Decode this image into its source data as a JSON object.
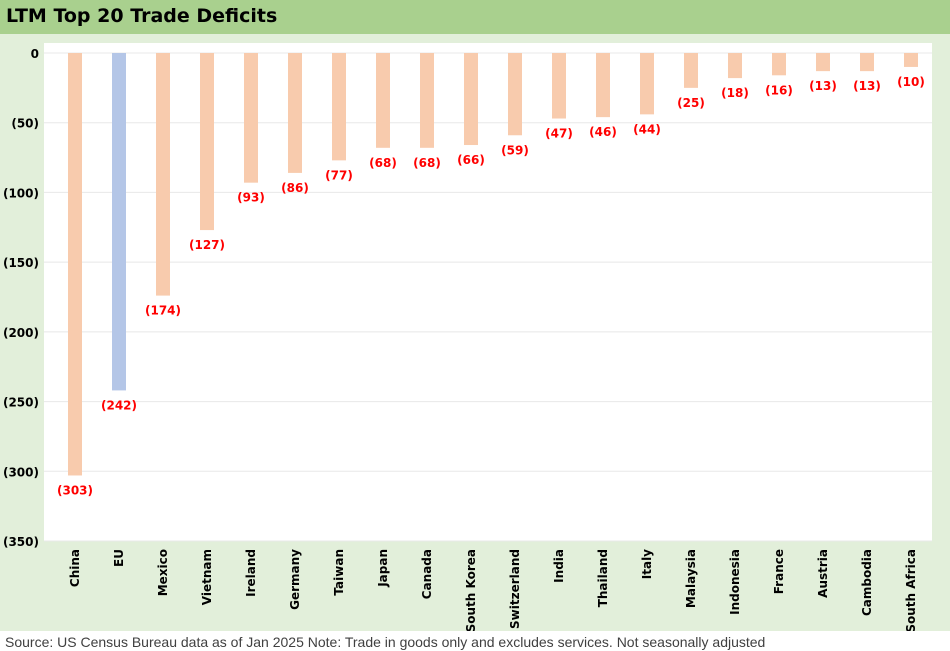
{
  "title": "LTM Top 20 Trade Deficits",
  "source_note": "Source: US Census Bureau data as of Jan 2025 Note: Trade in goods only and excludes services. Not seasonally adjusted",
  "colors": {
    "title_bar": "#a9d08e",
    "chart_background": "#e2efda",
    "bar_default": "#f8cbad",
    "bar_highlight": "#b4c6e7",
    "data_label": "#ff0000"
  },
  "chart_data": {
    "type": "bar",
    "title": "LTM Top 20 Trade Deficits",
    "categories": [
      "China",
      "EU",
      "Mexico",
      "Vietnam",
      "Ireland",
      "Germany",
      "Taiwan",
      "Japan",
      "Canada",
      "South Korea",
      "Switzerland",
      "India",
      "Thailand",
      "Italy",
      "Malaysia",
      "Indonesia",
      "France",
      "Austria",
      "Cambodia",
      "South Africa"
    ],
    "values": [
      -303,
      -242,
      -174,
      -127,
      -93,
      -86,
      -77,
      -68,
      -68,
      -66,
      -59,
      -47,
      -46,
      -44,
      -25,
      -18,
      -16,
      -13,
      -13,
      -10
    ],
    "data_labels": [
      "(303)",
      "(242)",
      "(174)",
      "(127)",
      "(93)",
      "(86)",
      "(77)",
      "(68)",
      "(68)",
      "(66)",
      "(59)",
      "(47)",
      "(46)",
      "(44)",
      "(25)",
      "(18)",
      "(16)",
      "(13)",
      "(13)",
      "(10)"
    ],
    "highlighted_category": "EU",
    "ylim": [
      -350,
      0
    ],
    "y_ticks": [
      0,
      -50,
      -100,
      -150,
      -200,
      -250,
      -300,
      -350
    ],
    "y_tick_labels": [
      "0",
      "(50)",
      "(100)",
      "(150)",
      "(200)",
      "(250)",
      "(300)",
      "(350)"
    ],
    "xlabel": "",
    "ylabel": "",
    "grid": true,
    "legend": false
  }
}
